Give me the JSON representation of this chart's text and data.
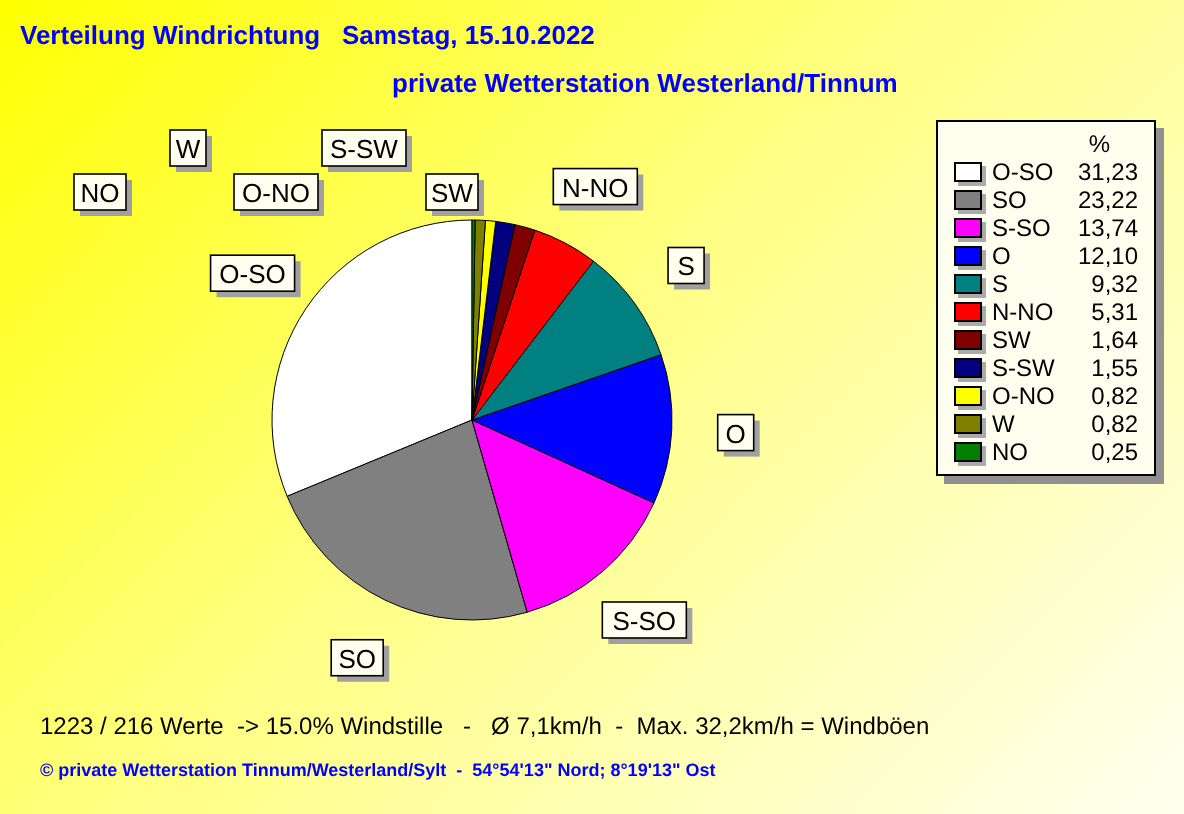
{
  "chart_data": {
    "type": "pie",
    "title": "Verteilung Windrichtung   Samstag, 15.10.2022",
    "subtitle": "private Wetterstation Westerland/Tinnum",
    "legend_title": "%",
    "categories": [
      "O-SO",
      "SO",
      "S-SO",
      "O",
      "S",
      "N-NO",
      "SW",
      "S-SW",
      "O-NO",
      "W",
      "NO"
    ],
    "values": [
      31.23,
      23.22,
      13.74,
      12.1,
      9.32,
      5.31,
      1.64,
      1.55,
      0.82,
      0.82,
      0.25
    ],
    "value_labels": [
      "31,23",
      "23,22",
      "13,74",
      "12,10",
      "9,32",
      "5,31",
      "1,64",
      "1,55",
      "0,82",
      "0,82",
      "0,25"
    ],
    "colors": [
      "#ffffff",
      "#808080",
      "#ff00ff",
      "#0000ff",
      "#008080",
      "#ff0000",
      "#800000",
      "#000080",
      "#ffff00",
      "#808000",
      "#008000"
    ],
    "legend": "right",
    "annotations": [
      "1223 / 216 Werte  -> 15.0% Windstille   -   Ø 7,1km/h  -  Max. 32,2km/h = Windböen",
      "© private Wetterstation Tinnum/Westerland/Sylt  -  54°54'13\" Nord; 8°19'13\" Ost"
    ]
  }
}
